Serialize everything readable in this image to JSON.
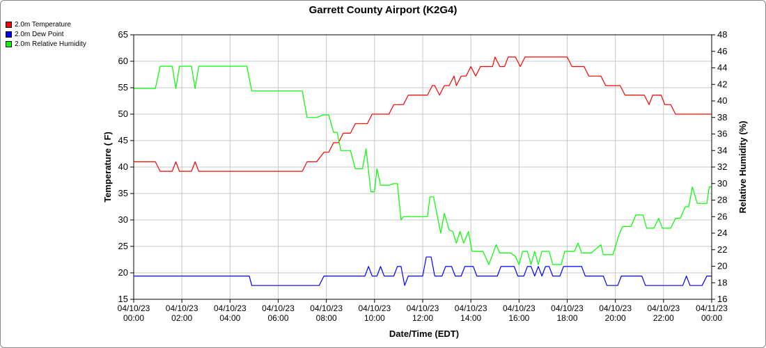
{
  "chart_data": {
    "type": "line",
    "title": "Garrett County Airport (K2G4)",
    "xlabel": "Date/Time (EDT)",
    "ylabel": "Temperature ( F)",
    "ylabel_right": "Relative Humidity (%)",
    "xlim": [
      0,
      24
    ],
    "ylim": [
      15,
      65
    ],
    "ylim_right": [
      16,
      48
    ],
    "x_ticks": [
      {
        "x": 0,
        "date": "04/10/23",
        "time": "00:00"
      },
      {
        "x": 2,
        "date": "04/10/23",
        "time": "02:00"
      },
      {
        "x": 4,
        "date": "04/10/23",
        "time": "04:00"
      },
      {
        "x": 6,
        "date": "04/10/23",
        "time": "06:00"
      },
      {
        "x": 8,
        "date": "04/10/23",
        "time": "08:00"
      },
      {
        "x": 10,
        "date": "04/10/23",
        "time": "10:00"
      },
      {
        "x": 12,
        "date": "04/10/23",
        "time": "12:00"
      },
      {
        "x": 14,
        "date": "04/10/23",
        "time": "14:00"
      },
      {
        "x": 16,
        "date": "04/10/23",
        "time": "16:00"
      },
      {
        "x": 18,
        "date": "04/10/23",
        "time": "18:00"
      },
      {
        "x": 20,
        "date": "04/10/23",
        "time": "20:00"
      },
      {
        "x": 22,
        "date": "04/10/23",
        "time": "22:00"
      },
      {
        "x": 24,
        "date": "04/11/23",
        "time": "00:00"
      }
    ],
    "y_ticks": [
      15,
      20,
      25,
      30,
      35,
      40,
      45,
      50,
      55,
      60,
      65
    ],
    "y_ticks_right": [
      16,
      18,
      20,
      22,
      24,
      26,
      28,
      30,
      32,
      34,
      36,
      38,
      40,
      42,
      44,
      46,
      48
    ],
    "grid": true,
    "legend_position": "top-left",
    "series": [
      {
        "name": "2.0m Temperature",
        "color": "#ff0000",
        "axis": "left",
        "points": [
          [
            0,
            41.0
          ],
          [
            0.9,
            41.0
          ],
          [
            1.1,
            39.2
          ],
          [
            1.6,
            39.2
          ],
          [
            1.75,
            41.0
          ],
          [
            1.9,
            39.2
          ],
          [
            2.4,
            39.2
          ],
          [
            2.55,
            41.0
          ],
          [
            2.7,
            39.2
          ],
          [
            7.0,
            39.2
          ],
          [
            7.2,
            41.0
          ],
          [
            7.6,
            41.0
          ],
          [
            7.9,
            42.8
          ],
          [
            8.1,
            42.8
          ],
          [
            8.3,
            44.6
          ],
          [
            8.5,
            44.6
          ],
          [
            8.7,
            46.4
          ],
          [
            9.0,
            46.4
          ],
          [
            9.2,
            48.2
          ],
          [
            9.7,
            48.2
          ],
          [
            9.9,
            50.0
          ],
          [
            10.6,
            50.0
          ],
          [
            10.8,
            51.8
          ],
          [
            11.2,
            51.8
          ],
          [
            11.4,
            53.6
          ],
          [
            12.2,
            53.6
          ],
          [
            12.4,
            55.4
          ],
          [
            12.5,
            55.4
          ],
          [
            12.7,
            53.6
          ],
          [
            12.9,
            55.4
          ],
          [
            13.1,
            55.4
          ],
          [
            13.3,
            57.2
          ],
          [
            13.4,
            55.4
          ],
          [
            13.6,
            57.2
          ],
          [
            13.8,
            57.2
          ],
          [
            14.0,
            59.0
          ],
          [
            14.2,
            57.2
          ],
          [
            14.4,
            59.0
          ],
          [
            14.9,
            59.0
          ],
          [
            15.0,
            60.8
          ],
          [
            15.2,
            59.0
          ],
          [
            15.4,
            59.0
          ],
          [
            15.55,
            60.8
          ],
          [
            15.85,
            60.8
          ],
          [
            16.05,
            59.0
          ],
          [
            16.25,
            60.8
          ],
          [
            18.0,
            60.8
          ],
          [
            18.2,
            59.0
          ],
          [
            18.7,
            59.0
          ],
          [
            18.9,
            57.2
          ],
          [
            19.4,
            57.2
          ],
          [
            19.6,
            55.4
          ],
          [
            20.2,
            55.4
          ],
          [
            20.4,
            53.6
          ],
          [
            21.2,
            53.6
          ],
          [
            21.4,
            51.8
          ],
          [
            21.55,
            53.6
          ],
          [
            21.9,
            53.6
          ],
          [
            22.05,
            51.8
          ],
          [
            22.3,
            51.8
          ],
          [
            22.5,
            50.0
          ],
          [
            24.0,
            50.0
          ]
        ]
      },
      {
        "name": "2.0m Dew Point",
        "color": "#0000ff",
        "axis": "left",
        "points": [
          [
            0,
            19.4
          ],
          [
            4.8,
            19.4
          ],
          [
            4.9,
            17.6
          ],
          [
            7.7,
            17.6
          ],
          [
            7.9,
            19.4
          ],
          [
            9.6,
            19.4
          ],
          [
            9.75,
            21.2
          ],
          [
            9.9,
            19.4
          ],
          [
            10.1,
            19.4
          ],
          [
            10.25,
            21.2
          ],
          [
            10.4,
            19.4
          ],
          [
            10.8,
            19.4
          ],
          [
            10.95,
            21.2
          ],
          [
            11.1,
            21.2
          ],
          [
            11.25,
            17.6
          ],
          [
            11.4,
            19.4
          ],
          [
            12.0,
            19.4
          ],
          [
            12.15,
            23.0
          ],
          [
            12.35,
            23.0
          ],
          [
            12.5,
            19.4
          ],
          [
            12.8,
            19.4
          ],
          [
            12.95,
            21.2
          ],
          [
            13.2,
            21.2
          ],
          [
            13.35,
            19.4
          ],
          [
            13.6,
            19.4
          ],
          [
            13.75,
            21.2
          ],
          [
            14.1,
            21.2
          ],
          [
            14.25,
            19.4
          ],
          [
            15.1,
            19.4
          ],
          [
            15.25,
            21.2
          ],
          [
            15.8,
            21.2
          ],
          [
            15.95,
            19.4
          ],
          [
            16.2,
            19.4
          ],
          [
            16.35,
            21.2
          ],
          [
            16.5,
            21.2
          ],
          [
            16.65,
            19.4
          ],
          [
            16.8,
            21.2
          ],
          [
            16.95,
            19.4
          ],
          [
            17.1,
            21.2
          ],
          [
            17.25,
            21.2
          ],
          [
            17.4,
            19.4
          ],
          [
            17.7,
            19.4
          ],
          [
            17.85,
            21.2
          ],
          [
            18.6,
            21.2
          ],
          [
            18.75,
            19.4
          ],
          [
            19.5,
            19.4
          ],
          [
            19.65,
            17.6
          ],
          [
            20.1,
            17.6
          ],
          [
            20.25,
            19.4
          ],
          [
            21.1,
            19.4
          ],
          [
            21.25,
            17.6
          ],
          [
            22.8,
            17.6
          ],
          [
            22.95,
            19.4
          ],
          [
            23.1,
            17.6
          ],
          [
            23.6,
            17.6
          ],
          [
            23.8,
            19.4
          ],
          [
            24.0,
            19.4
          ]
        ]
      },
      {
        "name": "2.0m Relative Humidity",
        "color": "#00ff00",
        "axis": "right",
        "points": [
          [
            0,
            41.5
          ],
          [
            0.9,
            41.5
          ],
          [
            1.1,
            44.2
          ],
          [
            1.6,
            44.2
          ],
          [
            1.75,
            41.5
          ],
          [
            1.9,
            44.2
          ],
          [
            2.4,
            44.2
          ],
          [
            2.55,
            41.5
          ],
          [
            2.7,
            44.2
          ],
          [
            4.7,
            44.2
          ],
          [
            4.9,
            41.2
          ],
          [
            7.0,
            41.2
          ],
          [
            7.2,
            38.0
          ],
          [
            7.6,
            38.0
          ],
          [
            7.85,
            38.3
          ],
          [
            8.1,
            38.3
          ],
          [
            8.3,
            36.2
          ],
          [
            8.45,
            36.2
          ],
          [
            8.6,
            34.0
          ],
          [
            9.0,
            34.0
          ],
          [
            9.2,
            31.8
          ],
          [
            9.5,
            31.8
          ],
          [
            9.65,
            34.2
          ],
          [
            9.85,
            29.0
          ],
          [
            10.0,
            29.0
          ],
          [
            10.1,
            31.8
          ],
          [
            10.25,
            29.8
          ],
          [
            10.6,
            29.8
          ],
          [
            10.8,
            30.0
          ],
          [
            10.95,
            30.0
          ],
          [
            11.1,
            25.6
          ],
          [
            11.2,
            26.0
          ],
          [
            12.2,
            26.0
          ],
          [
            12.3,
            28.4
          ],
          [
            12.45,
            28.4
          ],
          [
            12.75,
            24.0
          ],
          [
            12.9,
            26.4
          ],
          [
            13.1,
            24.4
          ],
          [
            13.25,
            24.2
          ],
          [
            13.4,
            22.8
          ],
          [
            13.55,
            24.2
          ],
          [
            13.7,
            22.8
          ],
          [
            13.9,
            24.2
          ],
          [
            14.05,
            21.8
          ],
          [
            14.5,
            21.8
          ],
          [
            14.75,
            20.2
          ],
          [
            15.05,
            22.6
          ],
          [
            15.2,
            21.6
          ],
          [
            15.65,
            21.6
          ],
          [
            15.85,
            21.2
          ],
          [
            16.0,
            20.2
          ],
          [
            16.15,
            21.8
          ],
          [
            16.35,
            21.8
          ],
          [
            16.5,
            20.2
          ],
          [
            16.65,
            21.8
          ],
          [
            16.8,
            20.2
          ],
          [
            16.95,
            21.8
          ],
          [
            17.25,
            21.8
          ],
          [
            17.4,
            20.2
          ],
          [
            17.75,
            20.2
          ],
          [
            17.9,
            21.8
          ],
          [
            18.3,
            21.8
          ],
          [
            18.45,
            22.8
          ],
          [
            18.6,
            21.6
          ],
          [
            19.0,
            21.6
          ],
          [
            19.4,
            22.6
          ],
          [
            19.5,
            21.4
          ],
          [
            19.9,
            21.4
          ],
          [
            20.15,
            23.8
          ],
          [
            20.3,
            24.8
          ],
          [
            20.65,
            24.8
          ],
          [
            20.85,
            26.2
          ],
          [
            21.15,
            26.2
          ],
          [
            21.3,
            24.6
          ],
          [
            21.6,
            24.6
          ],
          [
            21.8,
            25.8
          ],
          [
            21.95,
            24.6
          ],
          [
            22.3,
            24.6
          ],
          [
            22.5,
            25.8
          ],
          [
            22.7,
            25.8
          ],
          [
            22.9,
            27.2
          ],
          [
            23.05,
            27.2
          ],
          [
            23.2,
            29.6
          ],
          [
            23.4,
            27.6
          ],
          [
            23.8,
            27.6
          ],
          [
            23.9,
            29.6
          ],
          [
            24.0,
            29.6
          ]
        ]
      }
    ]
  }
}
